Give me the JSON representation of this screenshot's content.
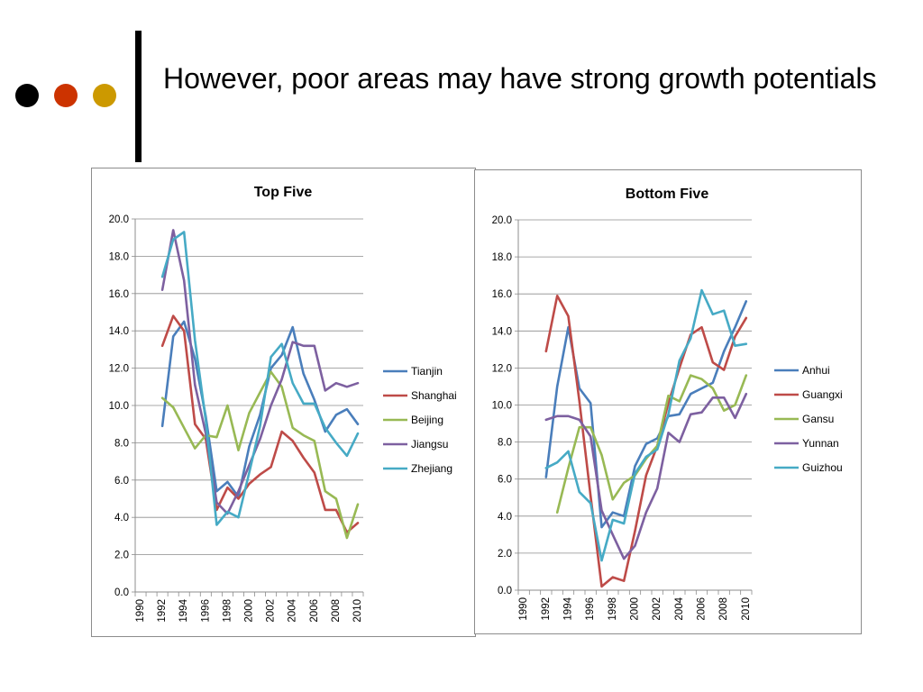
{
  "slide": {
    "title": "However, poor areas may have strong growth potentials",
    "colors": {
      "dot_1": "#000000",
      "dot_2": "#cc3300",
      "dot_3": "#cc9900",
      "bar": "#000000"
    }
  },
  "chart_data": [
    {
      "type": "line",
      "title": "Top Five",
      "xlabel": "",
      "ylabel": "",
      "ylim": [
        0,
        20
      ],
      "yticks": [
        "0.0",
        "2.0",
        "4.0",
        "6.0",
        "8.0",
        "10.0",
        "12.0",
        "14.0",
        "16.0",
        "18.0",
        "20.0"
      ],
      "xlim": [
        1990,
        2011
      ],
      "xticks": [
        "1990",
        "1992",
        "1994",
        "1996",
        "1998",
        "2000",
        "2002",
        "2004",
        "2006",
        "2008",
        "2010"
      ],
      "grid": true,
      "legend": "right",
      "x": [
        1992,
        1993,
        1994,
        1995,
        1996,
        1997,
        1998,
        1999,
        2000,
        2001,
        2002,
        2003,
        2004,
        2005,
        2006,
        2007,
        2008,
        2009,
        2010
      ],
      "series": [
        {
          "name": "Tianjin",
          "color": "#4a7ebb",
          "values": [
            8.9,
            13.7,
            14.5,
            12.5,
            9.4,
            5.4,
            5.9,
            5.1,
            7.8,
            9.5,
            12.0,
            12.7,
            14.2,
            11.7,
            10.3,
            8.6,
            9.5,
            9.8,
            9.0
          ]
        },
        {
          "name": "Shanghai",
          "color": "#be4b48",
          "values": [
            13.2,
            14.8,
            14.0,
            9.0,
            8.2,
            4.4,
            5.6,
            5.0,
            5.8,
            6.3,
            6.7,
            8.6,
            8.1,
            7.2,
            6.4,
            4.4,
            4.4,
            3.2,
            3.7
          ]
        },
        {
          "name": "Beijing",
          "color": "#98b954",
          "values": [
            10.4,
            9.9,
            8.8,
            7.7,
            8.4,
            8.3,
            10.0,
            7.6,
            9.6,
            10.7,
            11.8,
            11.0,
            8.8,
            8.4,
            8.1,
            5.4,
            5.0,
            2.9,
            4.7
          ]
        },
        {
          "name": "Jiangsu",
          "color": "#7d60a0",
          "values": [
            16.2,
            19.4,
            16.7,
            11.1,
            8.5,
            4.8,
            4.2,
            5.4,
            6.8,
            8.2,
            10.0,
            11.4,
            13.4,
            13.2,
            13.2,
            10.8,
            11.2,
            11.0,
            11.2
          ]
        },
        {
          "name": "Zhejiang",
          "color": "#46aac5",
          "values": [
            16.9,
            18.9,
            19.3,
            13.5,
            9.2,
            3.6,
            4.3,
            4.0,
            6.4,
            8.9,
            12.6,
            13.3,
            11.2,
            10.1,
            10.1,
            8.8,
            8.0,
            7.3,
            8.5
          ]
        }
      ]
    },
    {
      "type": "line",
      "title": "Bottom Five",
      "xlabel": "",
      "ylabel": "",
      "ylim": [
        0,
        20
      ],
      "yticks": [
        "0.0",
        "2.0",
        "4.0",
        "6.0",
        "8.0",
        "10.0",
        "12.0",
        "14.0",
        "16.0",
        "18.0",
        "20.0"
      ],
      "xlim": [
        1990,
        2011
      ],
      "xticks": [
        "1990",
        "1992",
        "1994",
        "1996",
        "1998",
        "2000",
        "2002",
        "2004",
        "2006",
        "2008",
        "2010"
      ],
      "grid": true,
      "legend": "right",
      "x": [
        1992,
        1993,
        1994,
        1995,
        1996,
        1997,
        1998,
        1999,
        2000,
        2001,
        2002,
        2003,
        2004,
        2005,
        2006,
        2007,
        2008,
        2009,
        2010
      ],
      "series": [
        {
          "name": "Anhui",
          "color": "#4a7ebb",
          "values": [
            6.1,
            11.0,
            14.2,
            10.9,
            10.1,
            3.4,
            4.2,
            4.0,
            6.7,
            7.9,
            8.2,
            9.4,
            9.5,
            10.6,
            10.9,
            11.2,
            12.9,
            14.2,
            15.6
          ]
        },
        {
          "name": "Guangxi",
          "color": "#be4b48",
          "values": [
            12.9,
            15.9,
            14.8,
            10.2,
            5.1,
            0.2,
            0.7,
            0.5,
            3.2,
            6.2,
            7.8,
            10.1,
            12.0,
            13.8,
            14.2,
            12.3,
            11.9,
            13.7,
            14.7
          ]
        },
        {
          "name": "Gansu",
          "color": "#98b954",
          "values": [
            null,
            4.2,
            6.6,
            8.8,
            8.8,
            7.3,
            4.9,
            5.8,
            6.2,
            7.1,
            7.8,
            10.5,
            10.2,
            11.6,
            11.4,
            10.9,
            9.7,
            10.0,
            11.6
          ]
        },
        {
          "name": "Yunnan",
          "color": "#7d60a0",
          "values": [
            9.2,
            9.4,
            9.4,
            9.2,
            8.3,
            4.3,
            3.0,
            1.7,
            2.4,
            4.2,
            5.5,
            8.5,
            8.0,
            9.5,
            9.6,
            10.4,
            10.4,
            9.3,
            10.6
          ]
        },
        {
          "name": "Guizhou",
          "color": "#46aac5",
          "values": [
            6.6,
            6.9,
            7.5,
            5.3,
            4.7,
            1.6,
            3.8,
            3.6,
            6.3,
            7.2,
            7.6,
            9.5,
            12.4,
            13.6,
            16.2,
            14.9,
            15.1,
            13.2,
            13.3
          ]
        }
      ]
    }
  ]
}
